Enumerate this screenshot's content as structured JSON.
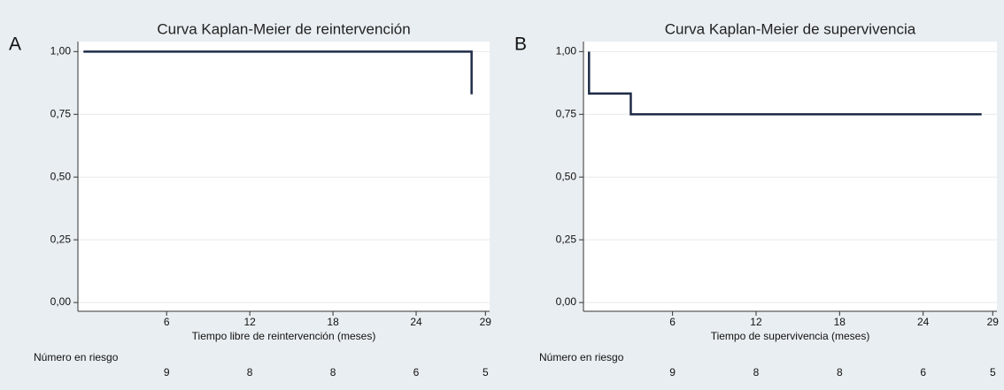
{
  "chart_data": [
    {
      "type": "line",
      "panel_label": "A",
      "title": "Curva Kaplan-Meier de reintervención",
      "x_label": "Tiempo libre de reintervención (meses)",
      "x": [
        0,
        28,
        28
      ],
      "series": [
        {
          "color": "#1f2c47",
          "values": [
            1,
            1,
            0.83
          ]
        }
      ],
      "xlim": [
        -0.4,
        29.3
      ],
      "xticks": [
        6,
        12,
        18,
        24,
        29
      ],
      "ylim": [
        -0.035,
        1.04
      ],
      "yticks": [
        {
          "value": 0,
          "label": "0,00"
        },
        {
          "value": 0.25,
          "label": "0,25"
        },
        {
          "value": 0.5,
          "label": "0,50"
        },
        {
          "value": 0.75,
          "label": "0,75"
        },
        {
          "value": 1,
          "label": "1,00"
        }
      ],
      "grid": true,
      "risk_label": "Número en riesgo",
      "at_risk": [
        9,
        8,
        8,
        6,
        5
      ]
    },
    {
      "type": "line",
      "panel_label": "B",
      "title": "Curva Kaplan-Meier de supervivencia",
      "x_label": "Tiempo de supervivencia (meses)",
      "x": [
        0,
        0,
        3,
        3,
        28.2
      ],
      "series": [
        {
          "color": "#1f2c47",
          "values": [
            1,
            0.833,
            0.833,
            0.75,
            0.75
          ]
        }
      ],
      "xlim": [
        -0.4,
        29.3
      ],
      "xticks": [
        6,
        12,
        18,
        24,
        29
      ],
      "ylim": [
        -0.035,
        1.04
      ],
      "yticks": [
        {
          "value": 0,
          "label": "0,00"
        },
        {
          "value": 0.25,
          "label": "0,25"
        },
        {
          "value": 0.5,
          "label": "0,50"
        },
        {
          "value": 0.75,
          "label": "0,75"
        },
        {
          "value": 1,
          "label": "1,00"
        }
      ],
      "grid": true,
      "risk_label": "Número en riesgo",
      "at_risk": [
        9,
        8,
        8,
        6,
        5
      ]
    }
  ]
}
